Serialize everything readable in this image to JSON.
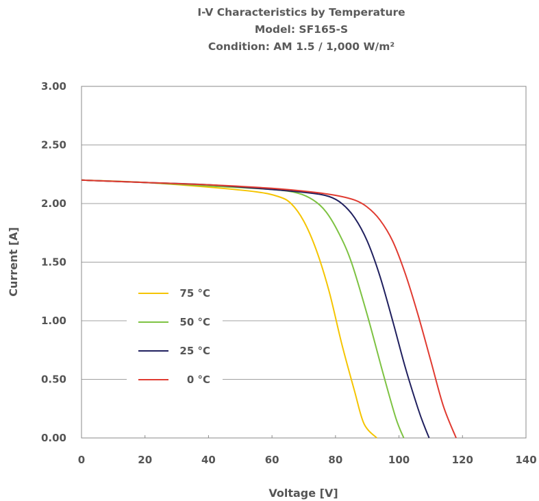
{
  "chart_data": {
    "type": "line",
    "title": [
      "I-V Characteristics by Temperature",
      "Model:  SF165-S",
      "Condition:   AM 1.5 / 1,000 W/m²"
    ],
    "xlabel": "Voltage [V]",
    "ylabel": "Current [A]",
    "xlim": [
      0,
      140
    ],
    "ylim": [
      0,
      3
    ],
    "xticks": [
      0,
      20,
      40,
      60,
      80,
      100,
      120,
      140
    ],
    "xtick_labels": [
      "0",
      "20",
      "40",
      "60",
      "80",
      "100",
      "120",
      "140"
    ],
    "yticks": [
      0,
      0.5,
      1,
      1.5,
      2,
      2.5,
      3
    ],
    "ytick_labels": [
      "0.00",
      "0.50",
      "1.00",
      "1.50",
      "2.00",
      "2.50",
      "3.00"
    ],
    "grid": "horizontal",
    "legend_position": "left-center",
    "series": [
      {
        "name": "75 °C",
        "color": "#f5c400",
        "points": [
          [
            0,
            2.2
          ],
          [
            20,
            2.18
          ],
          [
            40,
            2.14
          ],
          [
            55,
            2.1
          ],
          [
            62,
            2.06
          ],
          [
            66,
            2.0
          ],
          [
            70,
            1.85
          ],
          [
            74,
            1.6
          ],
          [
            78,
            1.25
          ],
          [
            82,
            0.8
          ],
          [
            86,
            0.4
          ],
          [
            89,
            0.12
          ],
          [
            93,
            0.0
          ]
        ]
      },
      {
        "name": "50 °C",
        "color": "#7dc242",
        "points": [
          [
            0,
            2.2
          ],
          [
            20,
            2.18
          ],
          [
            40,
            2.15
          ],
          [
            60,
            2.12
          ],
          [
            68,
            2.09
          ],
          [
            73,
            2.03
          ],
          [
            77,
            1.93
          ],
          [
            81,
            1.75
          ],
          [
            85,
            1.5
          ],
          [
            90,
            1.05
          ],
          [
            95,
            0.55
          ],
          [
            99,
            0.17
          ],
          [
            101.5,
            0.0
          ]
        ]
      },
      {
        "name": "25 °C",
        "color": "#1f1f5e",
        "points": [
          [
            0,
            2.2
          ],
          [
            20,
            2.18
          ],
          [
            40,
            2.16
          ],
          [
            60,
            2.12
          ],
          [
            72,
            2.09
          ],
          [
            78,
            2.06
          ],
          [
            82,
            2.0
          ],
          [
            86,
            1.88
          ],
          [
            90,
            1.68
          ],
          [
            94,
            1.38
          ],
          [
            98,
            1.0
          ],
          [
            102,
            0.6
          ],
          [
            106,
            0.25
          ],
          [
            108,
            0.1
          ],
          [
            109.5,
            0.0
          ]
        ]
      },
      {
        "name": "0 °C",
        "color": "#e03a30",
        "points": [
          [
            0,
            2.2
          ],
          [
            20,
            2.18
          ],
          [
            40,
            2.16
          ],
          [
            60,
            2.13
          ],
          [
            72,
            2.1
          ],
          [
            80,
            2.07
          ],
          [
            86,
            2.03
          ],
          [
            90,
            1.97
          ],
          [
            94,
            1.86
          ],
          [
            98,
            1.68
          ],
          [
            102,
            1.4
          ],
          [
            106,
            1.05
          ],
          [
            110,
            0.66
          ],
          [
            114,
            0.27
          ],
          [
            118,
            0.0
          ]
        ]
      }
    ]
  }
}
